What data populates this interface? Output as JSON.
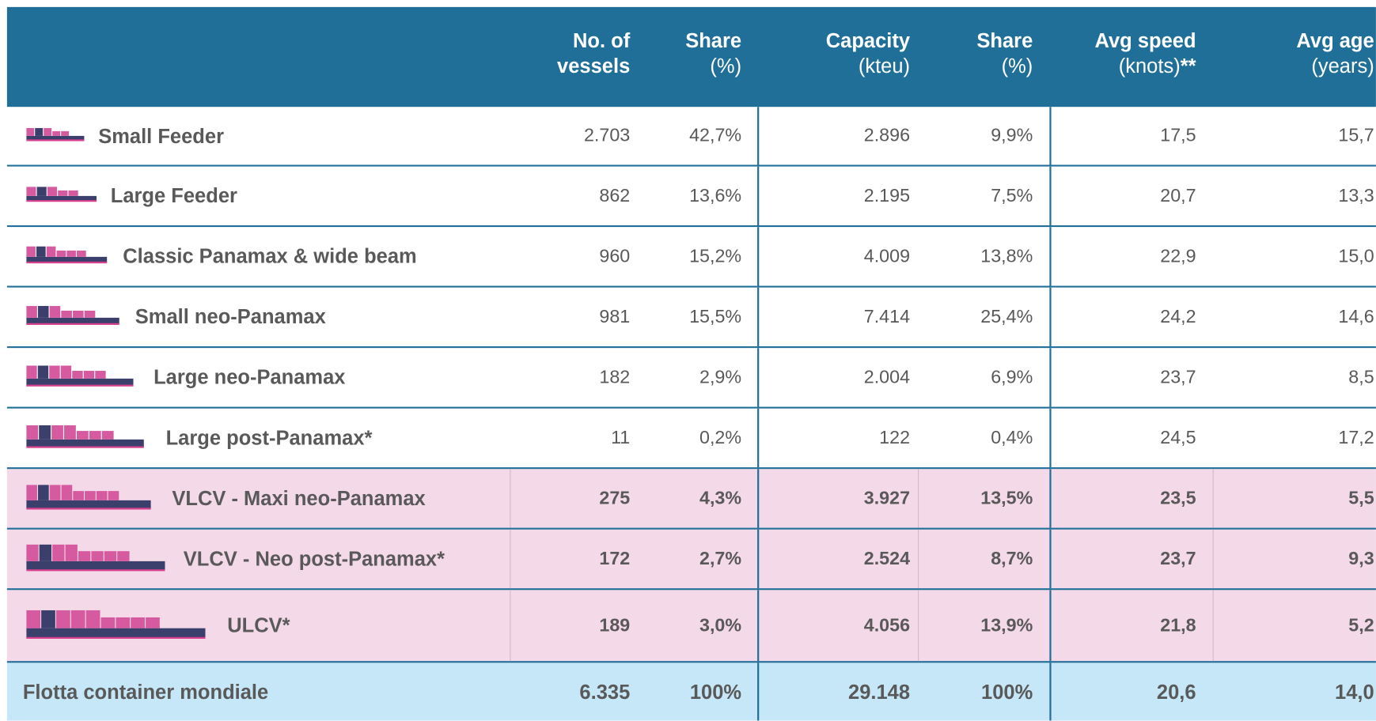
{
  "header": {
    "columns": [
      {
        "title": "No. of vessels"
      },
      {
        "title": "Share",
        "unit": "(%)"
      },
      {
        "title": "Capacity",
        "unit": "(kteu)"
      },
      {
        "title": "Share",
        "unit": "(%)"
      },
      {
        "title": "Avg speed",
        "unit": "(knots)",
        "note": "**"
      },
      {
        "title": "Avg age",
        "unit": "(years)"
      }
    ]
  },
  "table": {
    "rows": [
      [
        "Small Feeder",
        "2.703",
        "42,7%",
        "2.896",
        "9,9%",
        "17,5",
        "15,7"
      ],
      [
        "Large Feeder",
        "862",
        "13,6%",
        "2.195",
        "7,5%",
        "20,7",
        "13,3"
      ],
      [
        "Classic Panamax & wide beam",
        "960",
        "15,2%",
        "4.009",
        "13,8%",
        "22,9",
        "15,0"
      ],
      [
        "Small neo-Panamax",
        "981",
        "15,5%",
        "7.414",
        "25,4%",
        "24,2",
        "14,6"
      ],
      [
        "Large neo-Panamax",
        "182",
        "2,9%",
        "2.004",
        "6,9%",
        "23,7",
        "8,5"
      ],
      [
        "Large post-Panamax*",
        "11",
        "0,2%",
        "122",
        "0,4%",
        "24,5",
        "17,2"
      ],
      [
        "VLCV - Maxi neo-Panamax",
        "275",
        "4,3%",
        "3.927",
        "13,5%",
        "23,5",
        "5,5"
      ],
      [
        "VLCV - Neo post-Panamax*",
        "172",
        "2,7%",
        "2.524",
        "8,7%",
        "23,7",
        "9,3"
      ],
      [
        "ULCV*",
        "189",
        "3,0%",
        "4.056",
        "13,9%",
        "21,8",
        "5,2"
      ],
      [
        "Flotta container mondiale",
        "6.335",
        "100%",
        "29.148",
        "100%",
        "20,6",
        "14,0"
      ]
    ]
  }
}
